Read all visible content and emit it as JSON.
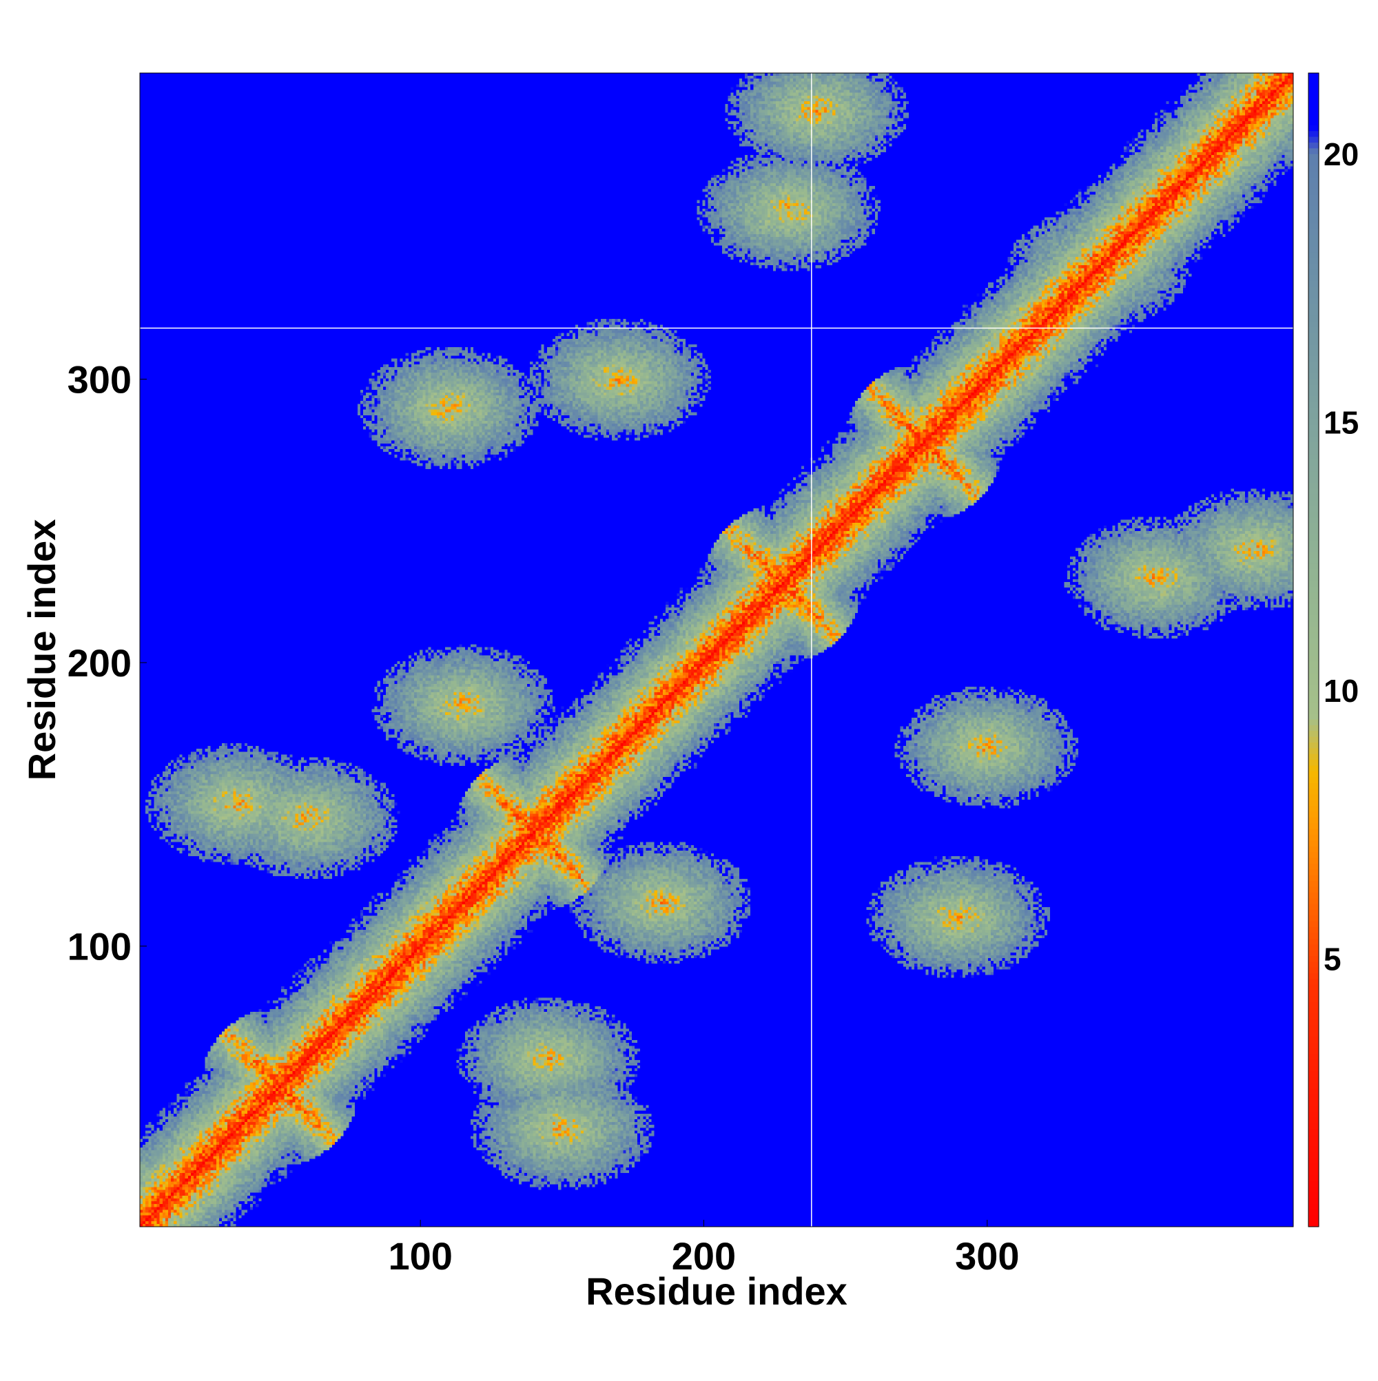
{
  "chart_data": {
    "type": "heatmap",
    "title": "",
    "xlabel": "Residue index",
    "ylabel": "Residue index",
    "xlim": [
      1,
      408
    ],
    "ylim": [
      1,
      408
    ],
    "x_ticks": [
      100,
      200,
      300
    ],
    "y_ticks": [
      100,
      200,
      300
    ],
    "colorbar": {
      "range": [
        0,
        21.5
      ],
      "ticks": [
        5,
        10,
        15,
        20
      ],
      "stops": [
        {
          "value": 0,
          "color": "#ff0000"
        },
        {
          "value": 2.5,
          "color": "#ff1a00"
        },
        {
          "value": 4.5,
          "color": "#ff3300"
        },
        {
          "value": 6,
          "color": "#ff6600"
        },
        {
          "value": 7.5,
          "color": "#ff9900"
        },
        {
          "value": 8.5,
          "color": "#f5b800"
        },
        {
          "value": 9.5,
          "color": "#a6c08a"
        },
        {
          "value": 12,
          "color": "#93b592"
        },
        {
          "value": 15,
          "color": "#7fa39e"
        },
        {
          "value": 18,
          "color": "#6a8ea8"
        },
        {
          "value": 20,
          "color": "#5e7fae"
        },
        {
          "value": 20.5,
          "color": "#0000ff"
        },
        {
          "value": 21.5,
          "color": "#0000ff"
        }
      ]
    },
    "grid": false,
    "reference_lines": {
      "x": 238,
      "y": 318
    },
    "description_of_values": "pairwise residue distance map",
    "features": [
      {
        "kind": "diagonal",
        "from": [
          1,
          1
        ],
        "to": [
          408,
          408
        ]
      },
      {
        "kind": "helix_cross",
        "center": [
          50,
          50
        ]
      },
      {
        "kind": "helix_cross",
        "center": [
          140,
          140
        ]
      },
      {
        "kind": "helix_cross",
        "center": [
          228,
          228
        ]
      },
      {
        "kind": "helix_cross",
        "center": [
          278,
          278
        ]
      },
      {
        "kind": "contact_blob",
        "center": [
          115,
          185
        ]
      },
      {
        "kind": "contact_blob",
        "center": [
          185,
          115
        ]
      },
      {
        "kind": "contact_blob",
        "center": [
          290,
          110
        ]
      },
      {
        "kind": "contact_blob",
        "center": [
          110,
          290
        ]
      },
      {
        "kind": "contact_blob",
        "center": [
          300,
          170
        ]
      },
      {
        "kind": "contact_blob",
        "center": [
          170,
          300
        ]
      },
      {
        "kind": "contact_blob",
        "center": [
          150,
          35
        ]
      },
      {
        "kind": "contact_blob",
        "center": [
          35,
          150
        ]
      },
      {
        "kind": "contact_blob",
        "center": [
          60,
          145
        ]
      },
      {
        "kind": "contact_blob",
        "center": [
          145,
          60
        ]
      },
      {
        "kind": "contact_blob",
        "center": [
          360,
          230
        ]
      },
      {
        "kind": "contact_blob",
        "center": [
          230,
          360
        ]
      },
      {
        "kind": "contact_blob",
        "center": [
          395,
          240
        ]
      },
      {
        "kind": "contact_blob",
        "center": [
          240,
          395
        ]
      },
      {
        "kind": "contact_blob",
        "center": [
          340,
          340
        ]
      }
    ]
  }
}
